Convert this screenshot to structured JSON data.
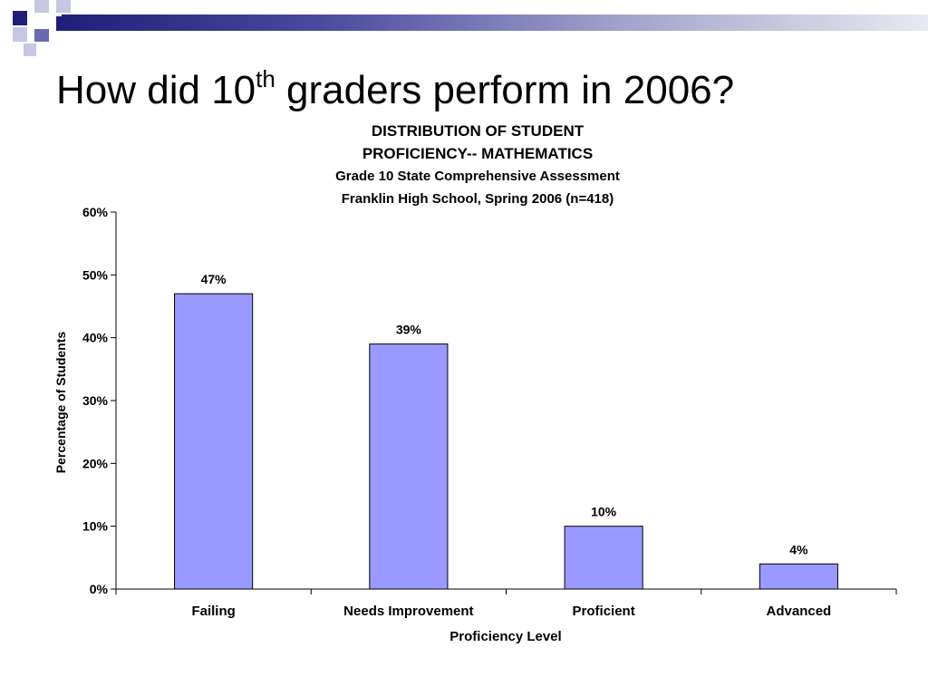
{
  "slide": {
    "title_pre": "How did 10",
    "title_sup": "th",
    "title_post": " graders perform in 2006?"
  },
  "theme": {
    "accent_dark": "#1f1f7a",
    "accent_mid": "#6a6ab0",
    "accent_light": "#c7c7e3",
    "bar_fill": "#9999ff"
  },
  "chart_data": {
    "type": "bar",
    "title_lines": [
      "DISTRIBUTION OF STUDENT",
      "PROFICIENCY-- MATHEMATICS"
    ],
    "subtitle_lines": [
      "Grade 10 State Comprehensive Assessment",
      "Franklin High School, Spring 2006 (n=418)"
    ],
    "categories": [
      "Failing",
      "Needs Improvement",
      "Proficient",
      "Advanced"
    ],
    "values": [
      47,
      39,
      10,
      4
    ],
    "data_labels": [
      "47%",
      "39%",
      "10%",
      "4%"
    ],
    "xlabel": "Proficiency Level",
    "ylabel": "Percentage of Students",
    "ylim": [
      0,
      60
    ],
    "yticks": [
      0,
      10,
      20,
      30,
      40,
      50,
      60
    ],
    "ytick_labels": [
      "0%",
      "10%",
      "20%",
      "30%",
      "40%",
      "50%",
      "60%"
    ],
    "grid": false,
    "legend": "none"
  }
}
